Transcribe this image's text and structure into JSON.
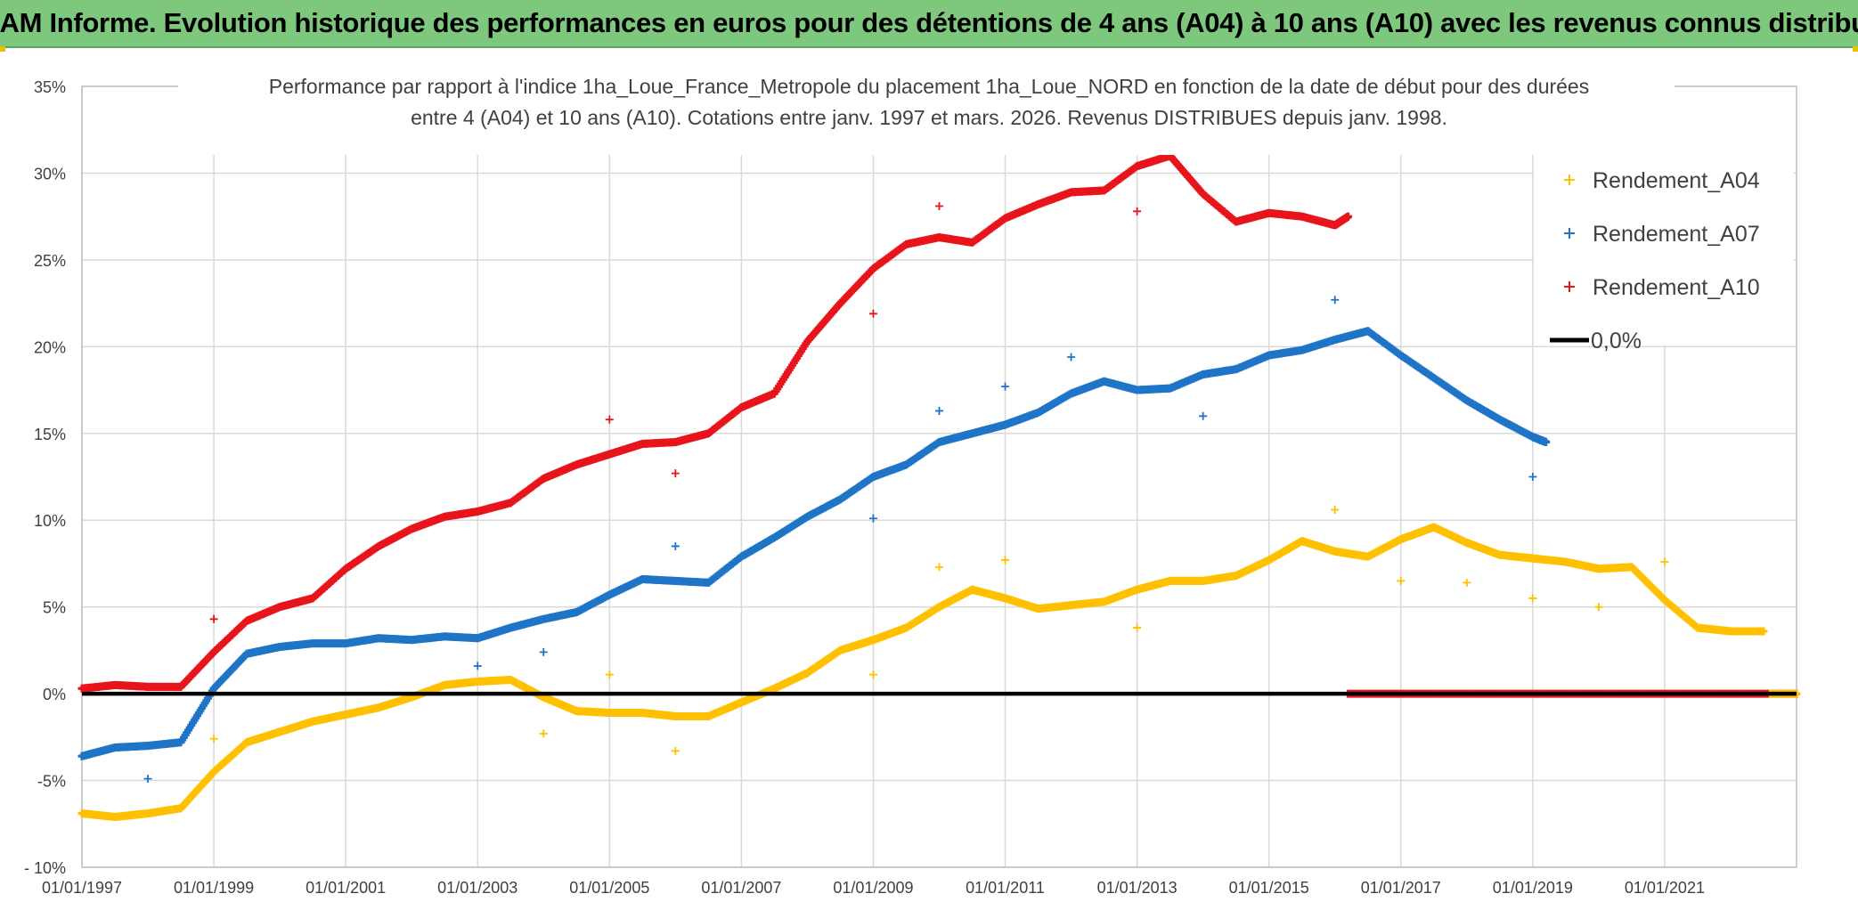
{
  "banner": {
    "title": "ADAM Informe. Evolution historique des performances en euros pour des détentions de 4 ans (A04) à 10 ans (A10) avec les revenus connus distribués"
  },
  "colors": {
    "banner_bg": "#7dc87d",
    "a04": "#ffc000",
    "a07": "#1f74c6",
    "a10": "#e8141c",
    "zero": "#000000",
    "grid": "#d9d9d9"
  },
  "chart_data": {
    "type": "scatter",
    "title_line1": "Performance par rapport à l'indice 1ha_Loue_France_Metropole  du placement 1ha_Loue_NORD en fonction de la date de début pour des durées",
    "title_line2": "entre 4 (A04) et 10 ans (A10). Cotations entre janv. 1997 et mars. 2026. Revenus DISTRIBUES depuis janv. 1998.",
    "xlabel": "",
    "ylabel": "",
    "xlim": [
      1997.0,
      2023.0
    ],
    "ylim": [
      -10,
      35
    ],
    "y_ticks": [
      -10,
      -5,
      0,
      5,
      10,
      15,
      20,
      25,
      30,
      35
    ],
    "y_tick_labels": [
      "- 10%",
      "-5%",
      "0%",
      "5%",
      "10%",
      "15%",
      "20%",
      "25%",
      "30%",
      "35%"
    ],
    "x_ticks": [
      1997,
      1999,
      2001,
      2003,
      2005,
      2007,
      2009,
      2011,
      2013,
      2015,
      2017,
      2019,
      2021
    ],
    "x_tick_labels": [
      "01/01/1997",
      "01/01/1999",
      "01/01/2001",
      "01/01/2003",
      "01/01/2005",
      "01/01/2007",
      "01/01/2009",
      "01/01/2011",
      "01/01/2013",
      "01/01/2015",
      "01/01/2017",
      "01/01/2019",
      "01/01/2021"
    ],
    "grid": true,
    "legend_position": "top-right",
    "series": [
      {
        "name": "Rendement_A04",
        "color": "#ffc000",
        "x": [
          1997.0,
          1997.5,
          1998.0,
          1998.5,
          1999.0,
          1999.5,
          2000.0,
          2000.5,
          2001.0,
          2001.5,
          2002.0,
          2002.5,
          2003.0,
          2003.5,
          2004.0,
          2004.5,
          2005.0,
          2005.5,
          2006.0,
          2006.5,
          2007.0,
          2007.5,
          2008.0,
          2008.5,
          2009.0,
          2009.5,
          2010.0,
          2010.5,
          2011.0,
          2011.5,
          2012.0,
          2012.5,
          2013.0,
          2013.5,
          2014.0,
          2014.5,
          2015.0,
          2015.5,
          2016.0,
          2016.5,
          2017.0,
          2017.5,
          2018.0,
          2018.5,
          2019.0,
          2019.5,
          2020.0,
          2020.5,
          2021.0,
          2021.5,
          2022.0,
          2022.5
        ],
        "y": [
          -6.9,
          -7.1,
          -6.9,
          -6.6,
          -4.5,
          -2.8,
          -2.2,
          -1.6,
          -1.2,
          -0.8,
          -0.2,
          0.5,
          0.7,
          0.8,
          -0.2,
          -1.0,
          -1.1,
          -1.1,
          -1.3,
          -1.3,
          -0.5,
          0.3,
          1.2,
          2.5,
          3.1,
          3.8,
          5.0,
          6.0,
          5.5,
          4.9,
          5.1,
          5.3,
          6.0,
          6.5,
          6.5,
          6.8,
          7.7,
          8.8,
          8.2,
          7.9,
          8.9,
          9.6,
          8.7,
          8.0,
          7.8,
          7.6,
          7.2,
          7.3,
          5.4,
          3.8,
          3.6,
          3.6
        ]
      },
      {
        "name": "Rendement_A07",
        "color": "#1f74c6",
        "x": [
          1997.0,
          1997.5,
          1998.0,
          1998.5,
          1999.0,
          1999.5,
          2000.0,
          2000.5,
          2001.0,
          2001.5,
          2002.0,
          2002.5,
          2003.0,
          2003.5,
          2004.0,
          2004.5,
          2005.0,
          2005.5,
          2006.0,
          2006.5,
          2007.0,
          2007.5,
          2008.0,
          2008.5,
          2009.0,
          2009.5,
          2010.0,
          2010.5,
          2011.0,
          2011.5,
          2012.0,
          2012.5,
          2013.0,
          2013.5,
          2014.0,
          2014.5,
          2015.0,
          2015.5,
          2016.0,
          2016.5,
          2017.0,
          2017.5,
          2018.0,
          2018.5,
          2019.0,
          2019.2
        ],
        "y": [
          -3.6,
          -3.1,
          -3.0,
          -2.8,
          0.3,
          2.3,
          2.7,
          2.9,
          2.9,
          3.2,
          3.1,
          3.3,
          3.2,
          3.8,
          4.3,
          4.7,
          5.7,
          6.6,
          6.5,
          6.4,
          7.9,
          9.0,
          10.2,
          11.2,
          12.5,
          13.2,
          14.5,
          15.0,
          15.5,
          16.2,
          17.3,
          18.0,
          17.5,
          17.6,
          18.4,
          18.7,
          19.5,
          19.8,
          20.4,
          20.9,
          19.5,
          18.2,
          16.9,
          15.8,
          14.8,
          14.5
        ]
      },
      {
        "name": "Rendement_A10",
        "color": "#e8141c",
        "x": [
          1997.0,
          1997.5,
          1998.0,
          1998.5,
          1999.0,
          1999.5,
          2000.0,
          2000.5,
          2001.0,
          2001.5,
          2002.0,
          2002.5,
          2003.0,
          2003.5,
          2004.0,
          2004.5,
          2005.0,
          2005.5,
          2006.0,
          2006.5,
          2007.0,
          2007.5,
          2008.0,
          2008.5,
          2009.0,
          2009.5,
          2010.0,
          2010.5,
          2011.0,
          2011.5,
          2012.0,
          2012.5,
          2013.0,
          2013.5,
          2014.0,
          2014.5,
          2015.0,
          2015.5,
          2016.0,
          2016.2
        ],
        "y": [
          0.3,
          0.5,
          0.4,
          0.4,
          2.4,
          4.2,
          5.0,
          5.5,
          7.2,
          8.5,
          9.5,
          10.2,
          10.5,
          11.0,
          12.4,
          13.2,
          13.8,
          14.4,
          14.5,
          15.0,
          16.5,
          17.3,
          20.3,
          22.5,
          24.5,
          25.9,
          26.3,
          26.0,
          27.4,
          28.2,
          28.9,
          29.0,
          30.4,
          31.0,
          28.8,
          27.2,
          27.7,
          27.5,
          27.0,
          27.5
        ]
      },
      {
        "name": "0,0%",
        "color": "#000000",
        "x": [
          1997.0,
          2023.0
        ],
        "y": [
          0,
          0
        ]
      }
    ],
    "outliers": [
      {
        "series": "Rendement_A04",
        "x": 1999.0,
        "y": -2.6
      },
      {
        "series": "Rendement_A04",
        "x": 2004.0,
        "y": -2.3
      },
      {
        "series": "Rendement_A04",
        "x": 2005.0,
        "y": 1.1
      },
      {
        "series": "Rendement_A04",
        "x": 2006.0,
        "y": -3.3
      },
      {
        "series": "Rendement_A04",
        "x": 2009.0,
        "y": 1.1
      },
      {
        "series": "Rendement_A04",
        "x": 2010.0,
        "y": 7.3
      },
      {
        "series": "Rendement_A04",
        "x": 2011.0,
        "y": 7.7
      },
      {
        "series": "Rendement_A04",
        "x": 2013.0,
        "y": 3.8
      },
      {
        "series": "Rendement_A04",
        "x": 2016.0,
        "y": 10.6
      },
      {
        "series": "Rendement_A04",
        "x": 2017.0,
        "y": 6.5
      },
      {
        "series": "Rendement_A04",
        "x": 2018.0,
        "y": 6.4
      },
      {
        "series": "Rendement_A04",
        "x": 2019.0,
        "y": 5.5
      },
      {
        "series": "Rendement_A04",
        "x": 2020.0,
        "y": 5.0
      },
      {
        "series": "Rendement_A04",
        "x": 2021.0,
        "y": 7.6
      },
      {
        "series": "Rendement_A07",
        "x": 1998.0,
        "y": -4.9
      },
      {
        "series": "Rendement_A07",
        "x": 2003.0,
        "y": 1.6
      },
      {
        "series": "Rendement_A07",
        "x": 2004.0,
        "y": 2.4
      },
      {
        "series": "Rendement_A07",
        "x": 2006.0,
        "y": 8.5
      },
      {
        "series": "Rendement_A07",
        "x": 2009.0,
        "y": 10.1
      },
      {
        "series": "Rendement_A07",
        "x": 2010.0,
        "y": 16.3
      },
      {
        "series": "Rendement_A07",
        "x": 2011.0,
        "y": 17.7
      },
      {
        "series": "Rendement_A07",
        "x": 2012.0,
        "y": 19.4
      },
      {
        "series": "Rendement_A07",
        "x": 2014.0,
        "y": 16.0
      },
      {
        "series": "Rendement_A07",
        "x": 2016.0,
        "y": 22.7
      },
      {
        "series": "Rendement_A07",
        "x": 2019.0,
        "y": 12.5
      },
      {
        "series": "Rendement_A10",
        "x": 1999.0,
        "y": 4.3
      },
      {
        "series": "Rendement_A10",
        "x": 2005.0,
        "y": 15.8
      },
      {
        "series": "Rendement_A10",
        "x": 2006.0,
        "y": 12.7
      },
      {
        "series": "Rendement_A10",
        "x": 2009.0,
        "y": 21.9
      },
      {
        "series": "Rendement_A10",
        "x": 2010.0,
        "y": 28.1
      },
      {
        "series": "Rendement_A10",
        "x": 2013.0,
        "y": 27.8
      }
    ],
    "tail_zero_segments": [
      {
        "series": "Rendement_A10",
        "x_start": 2016.2,
        "x_end": 2023.0,
        "y": 0
      },
      {
        "series": "Rendement_A04",
        "x_start": 2022.6,
        "x_end": 2023.0,
        "y": 0
      }
    ]
  }
}
